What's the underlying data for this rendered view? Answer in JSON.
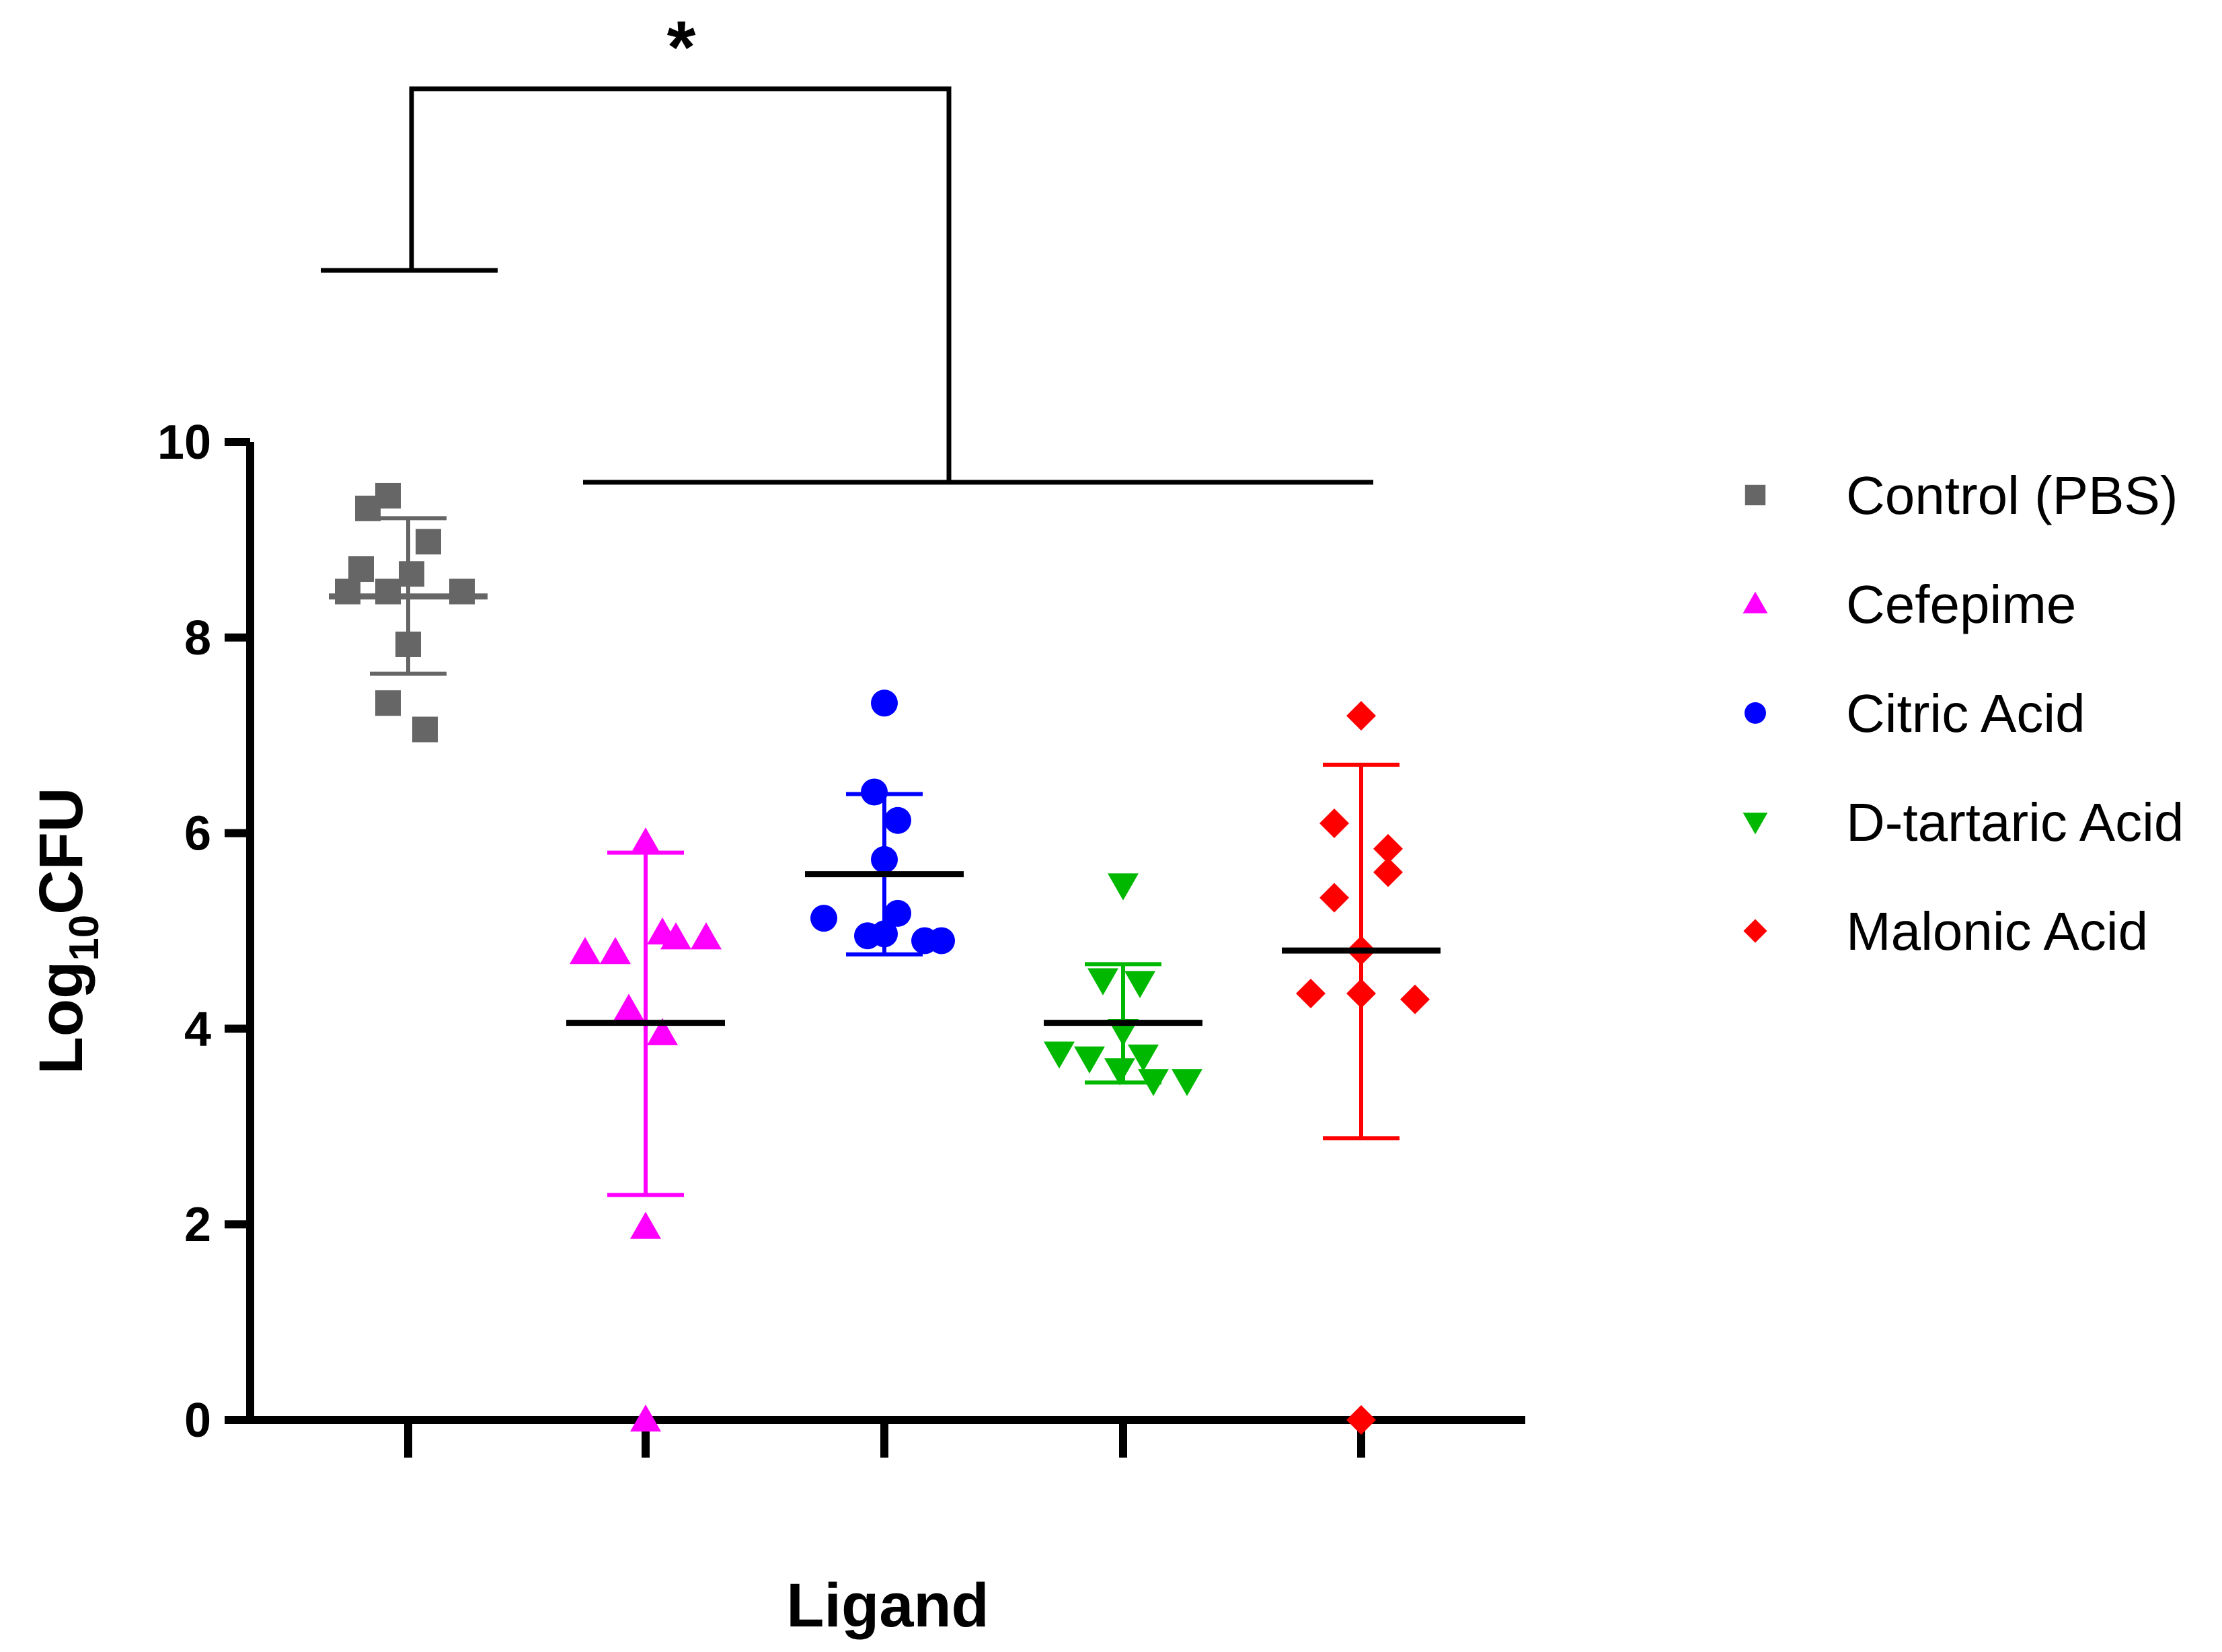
{
  "chart_data": {
    "type": "scatter",
    "subtype": "scatter-dot-plot-with-mean-and-sd",
    "title": "",
    "xlabel": "Ligand",
    "ylabel_base": "Log",
    "ylabel_sub": "10",
    "ylabel_rest": "CFU",
    "ylim": [
      0,
      10
    ],
    "yticks": [
      "0",
      "2",
      "4",
      "6",
      "8",
      "10"
    ],
    "grid": false,
    "legend_position": "right",
    "categories": [
      "Control (PBS)",
      "Cefepime",
      "Citric Acid",
      "D-tartaric Acid",
      "Malonic Acid"
    ],
    "series": [
      {
        "name": "Control (PBS)",
        "color": "#666666",
        "marker": "square",
        "mean": 8.42,
        "sd_low": 7.63,
        "sd_high": 9.22,
        "values": [
          9.45,
          9.32,
          8.98,
          8.7,
          8.65,
          8.47,
          8.47,
          8.47,
          7.93,
          7.33,
          7.06
        ]
      },
      {
        "name": "Cefepime",
        "color": "#ff00ff",
        "marker": "triangle-up",
        "mean": 4.06,
        "sd_low": 2.3,
        "sd_high": 5.8,
        "values": [
          5.9,
          4.98,
          4.93,
          4.93,
          4.78,
          4.78,
          4.2,
          3.95,
          1.97,
          0.0
        ]
      },
      {
        "name": "Citric Acid",
        "color": "#0000ff",
        "marker": "circle",
        "mean": 5.58,
        "sd_low": 4.76,
        "sd_high": 6.4,
        "values": [
          7.33,
          6.42,
          6.13,
          5.73,
          5.18,
          5.13,
          4.97,
          4.95,
          4.9,
          4.9
        ]
      },
      {
        "name": "D-tartaric Acid",
        "color": "#00b800",
        "marker": "triangle-down",
        "mean": 4.06,
        "sd_low": 3.45,
        "sd_high": 4.66,
        "values": [
          5.47,
          4.5,
          4.47,
          3.98,
          3.75,
          3.72,
          3.7,
          3.58,
          3.47,
          3.47
        ]
      },
      {
        "name": "Malonic Acid",
        "color": "#ff0000",
        "marker": "diamond",
        "mean": 4.8,
        "sd_low": 2.88,
        "sd_high": 6.7,
        "values": [
          7.2,
          6.1,
          5.84,
          5.6,
          5.34,
          4.8,
          4.36,
          4.36,
          4.3,
          0.0
        ]
      }
    ],
    "significance": {
      "label": "*",
      "compares": "Control (PBS) vs Cefepime, Citric Acid, D-tartaric Acid, Malonic Acid"
    }
  }
}
